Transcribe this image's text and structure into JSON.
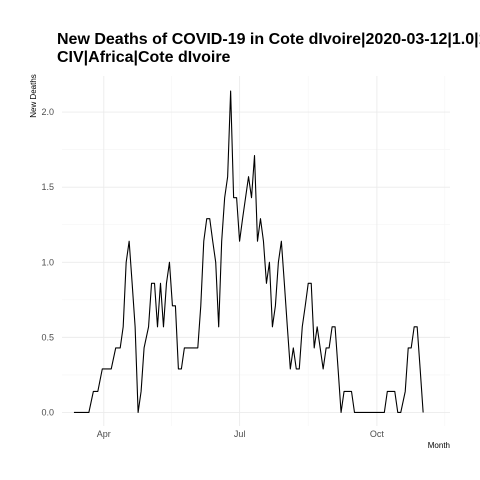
{
  "chart_data": {
    "type": "line",
    "title_lines": [
      "New Deaths of COVID-19 in Cote dIvoire|2020-03-12|1.0|1.0|||0",
      "CIV|Africa|Cote dIvoire"
    ],
    "xlabel": "Month",
    "ylabel": "New Deaths",
    "x_ticks": [
      {
        "date": "2020-04-01",
        "label": "Apr"
      },
      {
        "date": "2020-07-01",
        "label": "Jul"
      },
      {
        "date": "2020-10-01",
        "label": "Oct"
      }
    ],
    "y_ticks": [
      0.0,
      0.5,
      1.0,
      1.5,
      2.0
    ],
    "y_tick_labels": [
      "0.0",
      "0.5",
      "1.0",
      "1.5",
      "2.0"
    ],
    "ylim": [
      -0.09,
      2.24
    ],
    "xlim": [
      "2020-03-04",
      "2020-11-19"
    ],
    "grid": true,
    "series": [
      {
        "color": "#000000",
        "points": [
          [
            "2020-03-12",
            0.0
          ],
          [
            "2020-03-19",
            0.0
          ],
          [
            "2020-03-22",
            0.0
          ],
          [
            "2020-03-25",
            0.14
          ],
          [
            "2020-03-28",
            0.14
          ],
          [
            "2020-03-31",
            0.29
          ],
          [
            "2020-04-03",
            0.29
          ],
          [
            "2020-04-06",
            0.29
          ],
          [
            "2020-04-09",
            0.43
          ],
          [
            "2020-04-12",
            0.43
          ],
          [
            "2020-04-14",
            0.57
          ],
          [
            "2020-04-16",
            1.0
          ],
          [
            "2020-04-18",
            1.14
          ],
          [
            "2020-04-20",
            0.86
          ],
          [
            "2020-04-22",
            0.57
          ],
          [
            "2020-04-24",
            0.0
          ],
          [
            "2020-04-26",
            0.14
          ],
          [
            "2020-04-28",
            0.43
          ],
          [
            "2020-05-01",
            0.57
          ],
          [
            "2020-05-03",
            0.86
          ],
          [
            "2020-05-05",
            0.86
          ],
          [
            "2020-05-07",
            0.57
          ],
          [
            "2020-05-09",
            0.86
          ],
          [
            "2020-05-11",
            0.57
          ],
          [
            "2020-05-13",
            0.86
          ],
          [
            "2020-05-15",
            1.0
          ],
          [
            "2020-05-17",
            0.71
          ],
          [
            "2020-05-19",
            0.71
          ],
          [
            "2020-05-21",
            0.29
          ],
          [
            "2020-05-23",
            0.29
          ],
          [
            "2020-05-25",
            0.43
          ],
          [
            "2020-05-28",
            0.43
          ],
          [
            "2020-05-31",
            0.43
          ],
          [
            "2020-06-03",
            0.43
          ],
          [
            "2020-06-05",
            0.71
          ],
          [
            "2020-06-07",
            1.14
          ],
          [
            "2020-06-09",
            1.29
          ],
          [
            "2020-06-11",
            1.29
          ],
          [
            "2020-06-13",
            1.14
          ],
          [
            "2020-06-15",
            1.0
          ],
          [
            "2020-06-17",
            0.57
          ],
          [
            "2020-06-19",
            1.14
          ],
          [
            "2020-06-21",
            1.43
          ],
          [
            "2020-06-23",
            1.57
          ],
          [
            "2020-06-25",
            2.14
          ],
          [
            "2020-06-27",
            1.43
          ],
          [
            "2020-06-29",
            1.43
          ],
          [
            "2020-07-01",
            1.14
          ],
          [
            "2020-07-03",
            1.29
          ],
          [
            "2020-07-05",
            1.43
          ],
          [
            "2020-07-07",
            1.57
          ],
          [
            "2020-07-09",
            1.43
          ],
          [
            "2020-07-11",
            1.71
          ],
          [
            "2020-07-13",
            1.14
          ],
          [
            "2020-07-15",
            1.29
          ],
          [
            "2020-07-17",
            1.14
          ],
          [
            "2020-07-19",
            0.86
          ],
          [
            "2020-07-21",
            1.0
          ],
          [
            "2020-07-23",
            0.57
          ],
          [
            "2020-07-25",
            0.71
          ],
          [
            "2020-07-27",
            1.0
          ],
          [
            "2020-07-29",
            1.14
          ],
          [
            "2020-07-31",
            0.86
          ],
          [
            "2020-08-02",
            0.57
          ],
          [
            "2020-08-04",
            0.29
          ],
          [
            "2020-08-06",
            0.43
          ],
          [
            "2020-08-08",
            0.29
          ],
          [
            "2020-08-10",
            0.29
          ],
          [
            "2020-08-12",
            0.57
          ],
          [
            "2020-08-14",
            0.71
          ],
          [
            "2020-08-16",
            0.86
          ],
          [
            "2020-08-18",
            0.86
          ],
          [
            "2020-08-20",
            0.43
          ],
          [
            "2020-08-22",
            0.57
          ],
          [
            "2020-08-24",
            0.43
          ],
          [
            "2020-08-26",
            0.29
          ],
          [
            "2020-08-28",
            0.43
          ],
          [
            "2020-08-30",
            0.43
          ],
          [
            "2020-09-01",
            0.57
          ],
          [
            "2020-09-03",
            0.57
          ],
          [
            "2020-09-05",
            0.29
          ],
          [
            "2020-09-07",
            0.0
          ],
          [
            "2020-09-09",
            0.14
          ],
          [
            "2020-09-11",
            0.14
          ],
          [
            "2020-09-14",
            0.14
          ],
          [
            "2020-09-16",
            0.0
          ],
          [
            "2020-09-20",
            0.0
          ],
          [
            "2020-09-24",
            0.0
          ],
          [
            "2020-09-28",
            0.0
          ],
          [
            "2020-10-02",
            0.0
          ],
          [
            "2020-10-06",
            0.0
          ],
          [
            "2020-10-08",
            0.14
          ],
          [
            "2020-10-11",
            0.14
          ],
          [
            "2020-10-13",
            0.14
          ],
          [
            "2020-10-15",
            0.0
          ],
          [
            "2020-10-17",
            0.0
          ],
          [
            "2020-10-20",
            0.14
          ],
          [
            "2020-10-22",
            0.43
          ],
          [
            "2020-10-24",
            0.43
          ],
          [
            "2020-10-26",
            0.57
          ],
          [
            "2020-10-28",
            0.57
          ],
          [
            "2020-10-30",
            0.29
          ],
          [
            "2020-11-01",
            0.0
          ]
        ]
      }
    ]
  }
}
